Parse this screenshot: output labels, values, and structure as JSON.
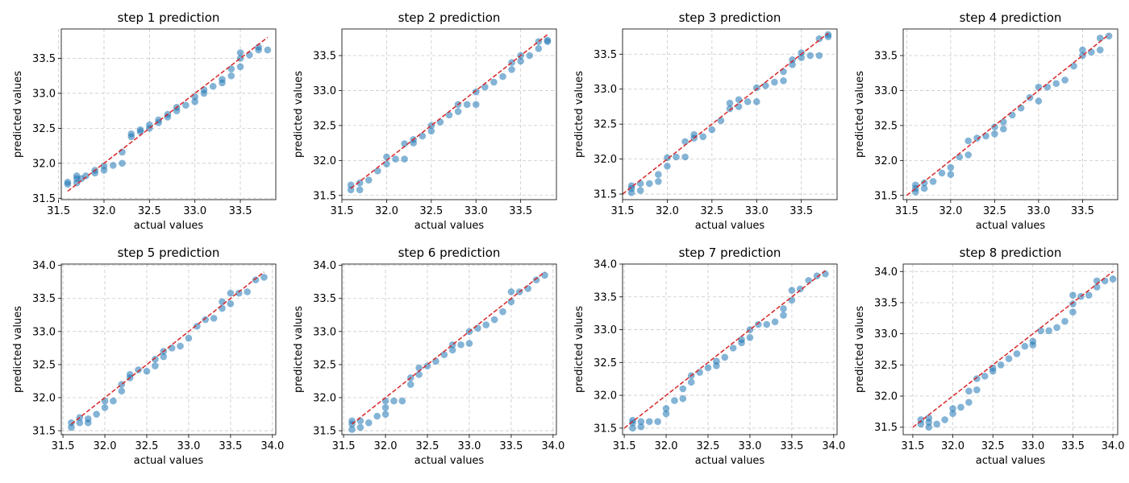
{
  "colors": {
    "point": "#1f77b4",
    "reference_line": "#d62728",
    "grid": "#c8c8c8",
    "axes": "#000000"
  },
  "chart_data": [
    {
      "type": "scatter",
      "title": "step 1 prediction",
      "xlabel": "actual values",
      "ylabel": "predicted values",
      "xlim": [
        31.53,
        33.89
      ],
      "ylim": [
        31.48,
        33.92
      ],
      "xticks": [
        "31.5",
        "32.0",
        "32.5",
        "33.0",
        "33.5"
      ],
      "yticks": [
        "31.5",
        "32.0",
        "32.5",
        "33.0",
        "33.5"
      ],
      "grid": true,
      "reference_line": {
        "style": "dashed",
        "x": [
          31.6,
          33.8
        ],
        "y": [
          31.6,
          33.8
        ]
      },
      "x": [
        31.6,
        31.6,
        31.7,
        31.7,
        31.7,
        31.75,
        31.8,
        31.9,
        31.9,
        32.0,
        32.0,
        32.1,
        32.2,
        32.2,
        32.3,
        32.3,
        32.4,
        32.4,
        32.5,
        32.5,
        32.6,
        32.6,
        32.7,
        32.7,
        32.8,
        32.8,
        32.9,
        33.0,
        33.0,
        33.1,
        33.1,
        33.2,
        33.3,
        33.3,
        33.4,
        33.4,
        33.5,
        33.5,
        33.5,
        33.6,
        33.7,
        33.7,
        33.8
      ],
      "y": [
        31.7,
        31.73,
        31.72,
        31.78,
        31.82,
        31.78,
        31.82,
        31.86,
        31.9,
        31.9,
        31.96,
        31.97,
        32.0,
        32.16,
        32.38,
        32.42,
        32.45,
        32.48,
        32.5,
        32.55,
        32.58,
        32.62,
        32.66,
        32.7,
        32.75,
        32.8,
        32.83,
        32.88,
        32.95,
        33.0,
        33.05,
        33.1,
        33.15,
        33.2,
        33.25,
        33.35,
        33.38,
        33.5,
        33.58,
        33.55,
        33.62,
        33.66,
        33.62
      ]
    },
    {
      "type": "scatter",
      "title": "step 2 prediction",
      "xlabel": "actual values",
      "ylabel": "predicted values",
      "xlim": [
        31.5,
        33.9
      ],
      "ylim": [
        31.44,
        33.88
      ],
      "xticks": [
        "31.5",
        "32.0",
        "32.5",
        "33.0",
        "33.5"
      ],
      "yticks": [
        "31.5",
        "32.0",
        "32.5",
        "33.0",
        "33.5"
      ],
      "grid": true,
      "reference_line": {
        "style": "dashed",
        "x": [
          31.6,
          33.8
        ],
        "y": [
          31.6,
          33.8
        ]
      },
      "x": [
        31.6,
        31.6,
        31.7,
        31.7,
        31.8,
        31.9,
        32.0,
        32.0,
        32.1,
        32.2,
        32.2,
        32.3,
        32.3,
        32.4,
        32.5,
        32.5,
        32.6,
        32.7,
        32.8,
        32.8,
        32.9,
        33.0,
        33.0,
        33.1,
        33.2,
        33.3,
        33.4,
        33.4,
        33.5,
        33.5,
        33.6,
        33.7,
        33.7,
        33.8,
        33.8
      ],
      "y": [
        31.58,
        31.65,
        31.58,
        31.68,
        31.72,
        31.85,
        31.95,
        32.05,
        32.02,
        32.02,
        32.24,
        32.25,
        32.3,
        32.35,
        32.42,
        32.5,
        32.55,
        32.65,
        32.7,
        32.8,
        32.8,
        32.8,
        32.98,
        33.05,
        33.12,
        33.2,
        33.3,
        33.4,
        33.42,
        33.5,
        33.5,
        33.6,
        33.7,
        33.7,
        33.72
      ]
    },
    {
      "type": "scatter",
      "title": "step 3 prediction",
      "xlabel": "actual values",
      "ylabel": "predicted values",
      "xlim": [
        31.5,
        33.9
      ],
      "ylim": [
        31.42,
        33.86
      ],
      "xticks": [
        "31.5",
        "32.0",
        "32.5",
        "33.0",
        "33.5"
      ],
      "yticks": [
        "31.5",
        "32.0",
        "32.5",
        "33.0",
        "33.5"
      ],
      "grid": true,
      "reference_line": {
        "style": "dashed",
        "x": [
          31.5,
          33.8
        ],
        "y": [
          31.5,
          33.8
        ]
      },
      "x": [
        31.6,
        31.6,
        31.6,
        31.7,
        31.7,
        31.8,
        31.9,
        31.9,
        32.0,
        32.0,
        32.1,
        32.2,
        32.2,
        32.3,
        32.3,
        32.4,
        32.5,
        32.6,
        32.7,
        32.7,
        32.8,
        32.8,
        32.9,
        33.0,
        33.0,
        33.1,
        33.2,
        33.3,
        33.3,
        33.4,
        33.4,
        33.5,
        33.5,
        33.6,
        33.7,
        33.7,
        33.8,
        33.8
      ],
      "y": [
        31.52,
        31.58,
        31.62,
        31.55,
        31.65,
        31.65,
        31.68,
        31.78,
        31.9,
        32.02,
        32.03,
        32.03,
        32.25,
        32.3,
        32.35,
        32.32,
        32.42,
        32.55,
        32.72,
        32.8,
        32.75,
        32.85,
        32.82,
        32.82,
        33.02,
        33.05,
        33.1,
        33.12,
        33.25,
        33.35,
        33.42,
        33.45,
        33.52,
        33.48,
        33.48,
        33.72,
        33.75,
        33.78
      ]
    },
    {
      "type": "scatter",
      "title": "step 4 prediction",
      "xlabel": "actual values",
      "ylabel": "predicted values",
      "xlim": [
        31.46,
        33.9
      ],
      "ylim": [
        31.44,
        33.88
      ],
      "xticks": [
        "31.5",
        "32.0",
        "32.5",
        "33.0",
        "33.5"
      ],
      "yticks": [
        "31.5",
        "32.0",
        "32.5",
        "33.0",
        "33.5"
      ],
      "grid": true,
      "reference_line": {
        "style": "dashed",
        "x": [
          31.5,
          33.8
        ],
        "y": [
          31.5,
          33.8
        ]
      },
      "x": [
        31.6,
        31.6,
        31.6,
        31.7,
        31.7,
        31.8,
        31.9,
        32.0,
        32.0,
        32.1,
        32.2,
        32.2,
        32.3,
        32.4,
        32.5,
        32.5,
        32.6,
        32.6,
        32.7,
        32.8,
        32.9,
        33.0,
        33.0,
        33.1,
        33.2,
        33.3,
        33.4,
        33.5,
        33.5,
        33.6,
        33.7,
        33.7,
        33.8
      ],
      "y": [
        31.55,
        31.6,
        31.65,
        31.6,
        31.68,
        31.7,
        31.82,
        31.8,
        31.9,
        32.05,
        32.08,
        32.28,
        32.32,
        32.35,
        32.38,
        32.48,
        32.45,
        32.55,
        32.65,
        32.75,
        32.9,
        32.85,
        33.05,
        33.05,
        33.1,
        33.15,
        33.35,
        33.5,
        33.58,
        33.55,
        33.58,
        33.75,
        33.78
      ]
    },
    {
      "type": "scatter",
      "title": "step 5 prediction",
      "xlabel": "actual values",
      "ylabel": "predicted values",
      "xlim": [
        31.48,
        34.04
      ],
      "ylim": [
        31.44,
        34.02
      ],
      "xticks": [
        "31.5",
        "32.0",
        "32.5",
        "33.0",
        "33.5",
        "34.0"
      ],
      "yticks": [
        "31.5",
        "32.0",
        "32.5",
        "33.0",
        "33.5",
        "34.0"
      ],
      "grid": true,
      "reference_line": {
        "style": "dashed",
        "x": [
          31.6,
          33.9
        ],
        "y": [
          31.6,
          33.9
        ]
      },
      "x": [
        31.6,
        31.6,
        31.7,
        31.7,
        31.8,
        31.8,
        31.9,
        32.0,
        32.0,
        32.1,
        32.2,
        32.2,
        32.3,
        32.3,
        32.4,
        32.5,
        32.6,
        32.6,
        32.7,
        32.7,
        32.8,
        32.9,
        33.0,
        33.1,
        33.2,
        33.3,
        33.4,
        33.4,
        33.5,
        33.5,
        33.6,
        33.7,
        33.8,
        33.9
      ],
      "y": [
        31.55,
        31.62,
        31.62,
        31.7,
        31.62,
        31.68,
        31.75,
        31.85,
        31.95,
        31.95,
        32.1,
        32.2,
        32.3,
        32.35,
        32.42,
        32.4,
        32.48,
        32.58,
        32.62,
        32.7,
        32.75,
        32.78,
        32.9,
        33.08,
        33.18,
        33.2,
        33.35,
        33.45,
        33.42,
        33.58,
        33.58,
        33.6,
        33.78,
        33.82
      ]
    },
    {
      "type": "scatter",
      "title": "step 6 prediction",
      "xlabel": "actual values",
      "ylabel": "predicted values",
      "xlim": [
        31.48,
        34.04
      ],
      "ylim": [
        31.44,
        34.02
      ],
      "xticks": [
        "31.5",
        "32.0",
        "32.5",
        "33.0",
        "33.5",
        "34.0"
      ],
      "yticks": [
        "31.5",
        "32.0",
        "32.5",
        "33.0",
        "33.5",
        "34.0"
      ],
      "grid": true,
      "reference_line": {
        "style": "dashed",
        "x": [
          31.6,
          33.9
        ],
        "y": [
          31.6,
          33.9
        ]
      },
      "x": [
        31.6,
        31.6,
        31.6,
        31.7,
        31.7,
        31.8,
        31.9,
        32.0,
        32.0,
        32.0,
        32.1,
        32.2,
        32.3,
        32.3,
        32.4,
        32.4,
        32.5,
        32.6,
        32.7,
        32.8,
        32.8,
        32.9,
        33.0,
        33.0,
        33.1,
        33.2,
        33.3,
        33.4,
        33.5,
        33.5,
        33.6,
        33.7,
        33.8,
        33.9
      ],
      "y": [
        31.52,
        31.6,
        31.65,
        31.55,
        31.65,
        31.62,
        31.72,
        31.75,
        31.85,
        31.95,
        31.95,
        31.95,
        32.2,
        32.3,
        32.35,
        32.45,
        32.48,
        32.55,
        32.65,
        32.72,
        32.8,
        32.8,
        32.82,
        33.0,
        33.05,
        33.1,
        33.18,
        33.3,
        33.45,
        33.6,
        33.6,
        33.65,
        33.78,
        33.85
      ]
    },
    {
      "type": "scatter",
      "title": "step 7 prediction",
      "xlabel": "actual values",
      "ylabel": "predicted values",
      "xlim": [
        31.48,
        34.04
      ],
      "ylim": [
        31.4,
        34.0
      ],
      "xticks": [
        "31.5",
        "32.0",
        "32.5",
        "33.0",
        "33.5",
        "34.0"
      ],
      "yticks": [
        "31.5",
        "32.0",
        "32.5",
        "33.0",
        "33.5",
        "34.0"
      ],
      "grid": true,
      "reference_line": {
        "style": "dashed",
        "x": [
          31.5,
          33.9
        ],
        "y": [
          31.5,
          33.9
        ]
      },
      "x": [
        31.6,
        31.6,
        31.6,
        31.7,
        31.7,
        31.8,
        31.9,
        32.0,
        32.0,
        32.1,
        32.2,
        32.2,
        32.3,
        32.3,
        32.4,
        32.5,
        32.6,
        32.6,
        32.7,
        32.8,
        32.9,
        32.9,
        33.0,
        33.0,
        33.1,
        33.2,
        33.3,
        33.4,
        33.4,
        33.5,
        33.5,
        33.6,
        33.7,
        33.8,
        33.9
      ],
      "y": [
        31.5,
        31.58,
        31.62,
        31.52,
        31.6,
        31.6,
        31.6,
        31.72,
        31.8,
        31.92,
        31.95,
        32.1,
        32.2,
        32.3,
        32.35,
        32.42,
        32.45,
        32.52,
        32.58,
        32.72,
        32.8,
        32.85,
        32.88,
        33.0,
        33.08,
        33.08,
        33.12,
        33.22,
        33.32,
        33.45,
        33.6,
        33.62,
        33.75,
        33.82,
        33.85
      ]
    },
    {
      "type": "scatter",
      "title": "step 8 prediction",
      "xlabel": "actual values",
      "ylabel": "predicted values",
      "xlim": [
        31.38,
        34.06
      ],
      "ylim": [
        31.38,
        34.12
      ],
      "xticks": [
        "31.5",
        "32.0",
        "32.5",
        "33.0",
        "33.5",
        "34.0"
      ],
      "yticks": [
        "31.5",
        "32.0",
        "32.5",
        "33.0",
        "33.5",
        "34.0"
      ],
      "grid": true,
      "reference_line": {
        "style": "dashed",
        "x": [
          31.5,
          34.0
        ],
        "y": [
          31.5,
          34.0
        ]
      },
      "x": [
        31.6,
        31.6,
        31.7,
        31.7,
        31.7,
        31.8,
        31.9,
        32.0,
        32.0,
        32.1,
        32.2,
        32.2,
        32.3,
        32.3,
        32.4,
        32.5,
        32.5,
        32.6,
        32.7,
        32.8,
        32.9,
        33.0,
        33.0,
        33.1,
        33.2,
        33.3,
        33.4,
        33.5,
        33.5,
        33.5,
        33.6,
        33.7,
        33.8,
        33.8,
        33.9,
        34.0
      ],
      "y": [
        31.55,
        31.62,
        31.5,
        31.58,
        31.65,
        31.55,
        31.62,
        31.72,
        31.8,
        31.82,
        31.9,
        32.08,
        32.1,
        32.28,
        32.32,
        32.4,
        32.45,
        32.5,
        32.6,
        32.68,
        32.8,
        32.82,
        32.88,
        33.05,
        33.05,
        33.1,
        33.2,
        33.35,
        33.48,
        33.62,
        33.6,
        33.62,
        33.75,
        33.85,
        33.85,
        33.88
      ]
    }
  ]
}
